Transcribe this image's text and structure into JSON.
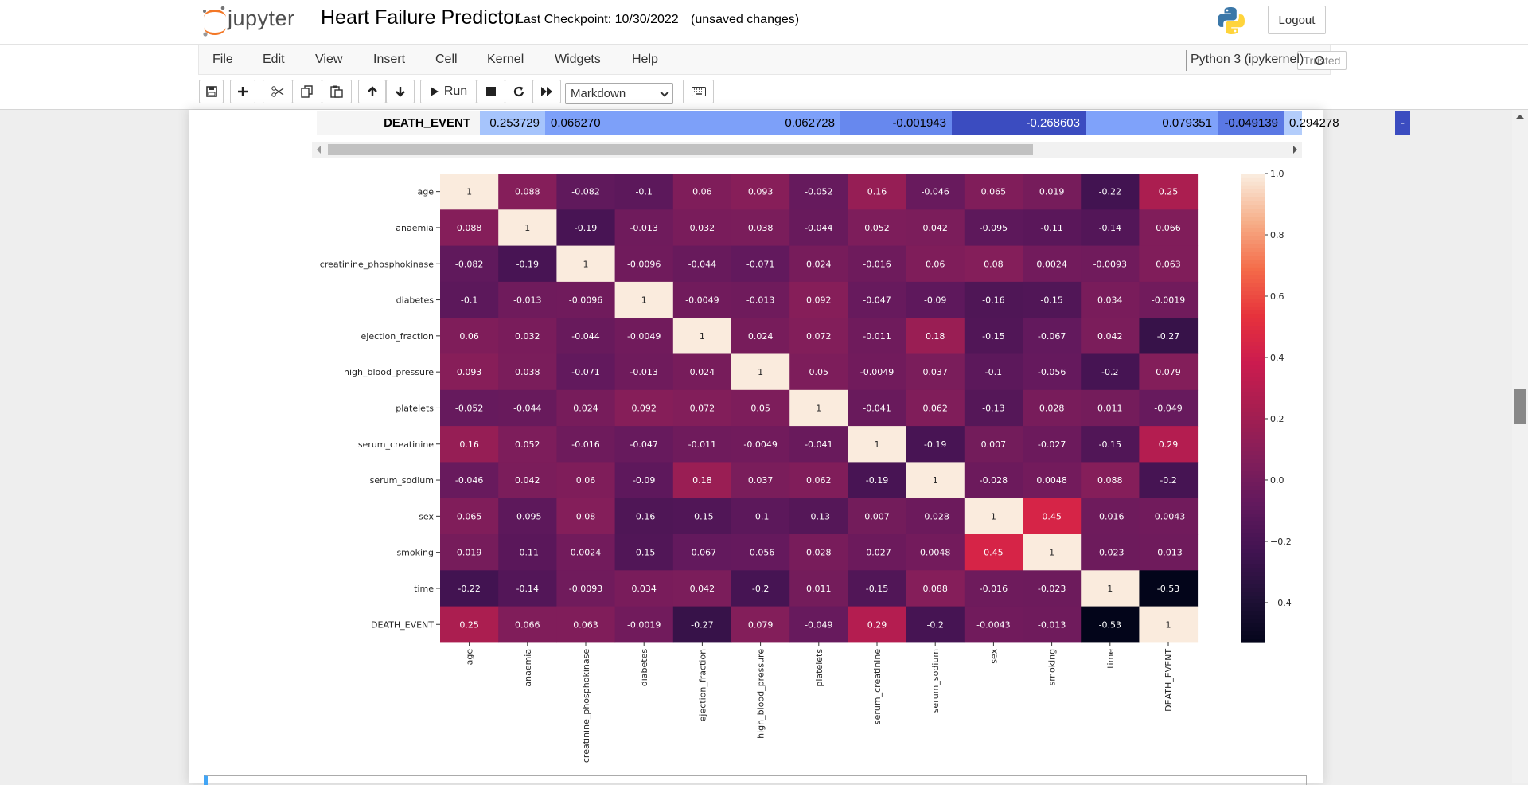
{
  "header": {
    "logo_text": "jupyter",
    "notebook_title": "Heart Failure Predictor",
    "checkpoint": "Last Checkpoint: 10/30/2022",
    "unsaved": "(unsaved changes)",
    "logout_label": "Logout"
  },
  "menu": {
    "items": [
      "File",
      "Edit",
      "View",
      "Insert",
      "Cell",
      "Kernel",
      "Widgets",
      "Help"
    ],
    "trusted": "Trusted",
    "kernel": "Python 3 (ipykernel)"
  },
  "toolbar": {
    "run_label": "Run",
    "cell_type": "Markdown"
  },
  "dataframe_row": {
    "label": "DEATH_EVENT",
    "cells": [
      {
        "value": "0.253729",
        "color": "#a6c4fc"
      },
      {
        "value": "0.066270",
        "color": "#7da0f9"
      },
      {
        "value": "0.062728",
        "color": "#7da0f9"
      },
      {
        "value": "-0.001943",
        "color": "#6788ee"
      },
      {
        "value": "-0.268603",
        "color": "#3b4cc0"
      },
      {
        "value": "0.079351",
        "color": "#7fa2fa"
      },
      {
        "value": "-0.049139",
        "color": "#5a78e4"
      },
      {
        "value": "0.294278",
        "color": "#b3cdfb"
      },
      {
        "value": "-",
        "color": "#3b4cc0"
      }
    ]
  },
  "chart_data": {
    "type": "heatmap",
    "labels": [
      "age",
      "anaemia",
      "creatinine_phosphokinase",
      "diabetes",
      "ejection_fraction",
      "high_blood_pressure",
      "platelets",
      "serum_creatinine",
      "serum_sodium",
      "sex",
      "smoking",
      "time",
      "DEATH_EVENT"
    ],
    "matrix": [
      [
        "1",
        "0.088",
        "-0.082",
        "-0.1",
        "0.06",
        "0.093",
        "-0.052",
        "0.16",
        "-0.046",
        "0.065",
        "0.019",
        "-0.22",
        "0.25"
      ],
      [
        "0.088",
        "1",
        "-0.19",
        "-0.013",
        "0.032",
        "0.038",
        "-0.044",
        "0.052",
        "0.042",
        "-0.095",
        "-0.11",
        "-0.14",
        "0.066"
      ],
      [
        "-0.082",
        "-0.19",
        "1",
        "-0.0096",
        "-0.044",
        "-0.071",
        "0.024",
        "-0.016",
        "0.06",
        "0.08",
        "0.0024",
        "-0.0093",
        "0.063"
      ],
      [
        "-0.1",
        "-0.013",
        "-0.0096",
        "1",
        "-0.0049",
        "-0.013",
        "0.092",
        "-0.047",
        "-0.09",
        "-0.16",
        "-0.15",
        "0.034",
        "-0.0019"
      ],
      [
        "0.06",
        "0.032",
        "-0.044",
        "-0.0049",
        "1",
        "0.024",
        "0.072",
        "-0.011",
        "0.18",
        "-0.15",
        "-0.067",
        "0.042",
        "-0.27"
      ],
      [
        "0.093",
        "0.038",
        "-0.071",
        "-0.013",
        "0.024",
        "1",
        "0.05",
        "-0.0049",
        "0.037",
        "-0.1",
        "-0.056",
        "-0.2",
        "0.079"
      ],
      [
        "-0.052",
        "-0.044",
        "0.024",
        "0.092",
        "0.072",
        "0.05",
        "1",
        "-0.041",
        "0.062",
        "-0.13",
        "0.028",
        "0.011",
        "-0.049"
      ],
      [
        "0.16",
        "0.052",
        "-0.016",
        "-0.047",
        "-0.011",
        "-0.0049",
        "-0.041",
        "1",
        "-0.19",
        "0.007",
        "-0.027",
        "-0.15",
        "0.29"
      ],
      [
        "-0.046",
        "0.042",
        "0.06",
        "-0.09",
        "0.18",
        "0.037",
        "0.062",
        "-0.19",
        "1",
        "-0.028",
        "0.0048",
        "0.088",
        "-0.2"
      ],
      [
        "0.065",
        "-0.095",
        "0.08",
        "-0.16",
        "-0.15",
        "-0.1",
        "-0.13",
        "0.007",
        "-0.028",
        "1",
        "0.45",
        "-0.016",
        "-0.0043"
      ],
      [
        "0.019",
        "-0.11",
        "0.0024",
        "-0.15",
        "-0.067",
        "-0.056",
        "0.028",
        "-0.027",
        "0.0048",
        "0.45",
        "1",
        "-0.023",
        "-0.013"
      ],
      [
        "-0.22",
        "-0.14",
        "-0.0093",
        "0.034",
        "0.042",
        "-0.2",
        "0.011",
        "-0.15",
        "0.088",
        "-0.016",
        "-0.023",
        "1",
        "-0.53"
      ],
      [
        "0.25",
        "0.066",
        "0.063",
        "-0.0019",
        "-0.27",
        "0.079",
        "-0.049",
        "0.29",
        "-0.2",
        "-0.0043",
        "-0.013",
        "-0.53",
        "1"
      ]
    ],
    "colorbar": {
      "min": -0.53,
      "max": 1.0,
      "ticks": [
        "1.0",
        "0.8",
        "0.6",
        "0.4",
        "0.2",
        "0.0",
        "−0.2",
        "−0.4"
      ],
      "tick_values": [
        1.0,
        0.8,
        0.6,
        0.4,
        0.2,
        0.0,
        -0.2,
        -0.4
      ],
      "colormap": "rocket"
    }
  }
}
